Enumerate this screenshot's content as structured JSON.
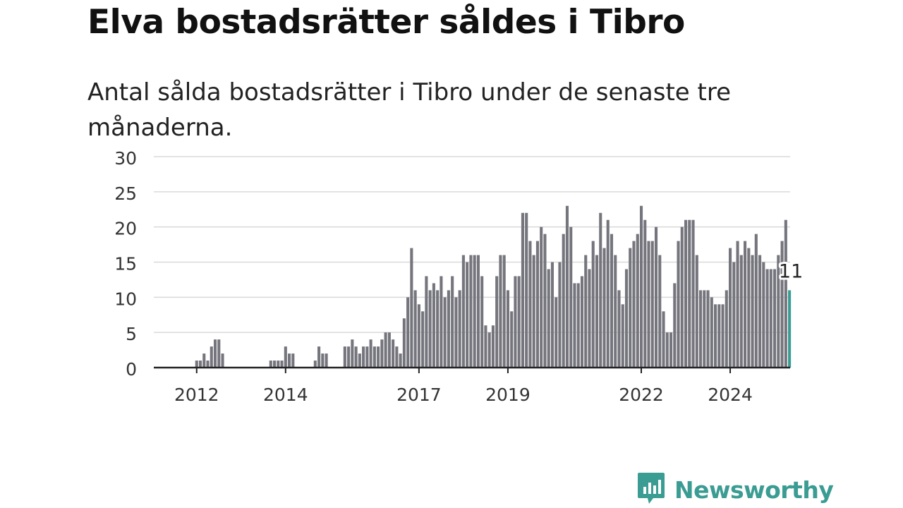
{
  "header": {
    "title": "Elva bostadsrätter såldes i Tibro",
    "subtitle": "Antal sålda bostadsrätter i Tibro under de senaste tre månaderna."
  },
  "brand": {
    "name": "Newsworthy",
    "icon": "newsworthy-chart-bubble-icon",
    "color": "#3a9c92"
  },
  "chart_data": {
    "type": "bar",
    "title": "",
    "xlabel": "",
    "ylabel": "",
    "ylim": [
      0,
      30
    ],
    "yticks": [
      0,
      5,
      10,
      15,
      20,
      25,
      30
    ],
    "xticks": [
      {
        "label": "2012",
        "month": "2012-01"
      },
      {
        "label": "2014",
        "month": "2014-01"
      },
      {
        "label": "2017",
        "month": "2017-01"
      },
      {
        "label": "2019",
        "month": "2019-01"
      },
      {
        "label": "2022",
        "month": "2022-01"
      },
      {
        "label": "2024",
        "month": "2024-01"
      }
    ],
    "grid": true,
    "bar_color": "#75757d",
    "highlight_color": "#3a9c92",
    "highlight_label": "11",
    "start_month": "2011-04",
    "values": [
      0,
      0,
      0,
      0,
      0,
      0,
      0,
      0,
      0,
      1,
      1,
      2,
      1,
      3,
      4,
      4,
      2,
      0,
      0,
      0,
      0,
      0,
      0,
      0,
      0,
      0,
      0,
      0,
      0,
      1,
      1,
      1,
      1,
      3,
      2,
      2,
      0,
      0,
      0,
      0,
      0,
      1,
      3,
      2,
      2,
      0,
      0,
      0,
      0,
      3,
      3,
      4,
      3,
      2,
      3,
      3,
      4,
      3,
      3,
      4,
      5,
      5,
      4,
      3,
      2,
      7,
      10,
      17,
      11,
      9,
      8,
      13,
      11,
      12,
      11,
      13,
      10,
      11,
      13,
      10,
      11,
      16,
      15,
      16,
      16,
      16,
      13,
      6,
      5,
      6,
      13,
      16,
      16,
      11,
      8,
      13,
      13,
      22,
      22,
      18,
      16,
      18,
      20,
      19,
      14,
      15,
      10,
      15,
      19,
      23,
      20,
      12,
      12,
      13,
      16,
      14,
      18,
      16,
      22,
      17,
      21,
      19,
      16,
      11,
      9,
      14,
      17,
      18,
      19,
      23,
      21,
      18,
      18,
      20,
      16,
      8,
      5,
      5,
      12,
      18,
      20,
      21,
      21,
      21,
      16,
      11,
      11,
      11,
      10,
      9,
      9,
      9,
      11,
      17,
      15,
      18,
      16,
      18,
      17,
      16,
      19,
      16,
      15,
      14,
      14,
      14,
      16,
      18,
      21,
      11
    ]
  }
}
